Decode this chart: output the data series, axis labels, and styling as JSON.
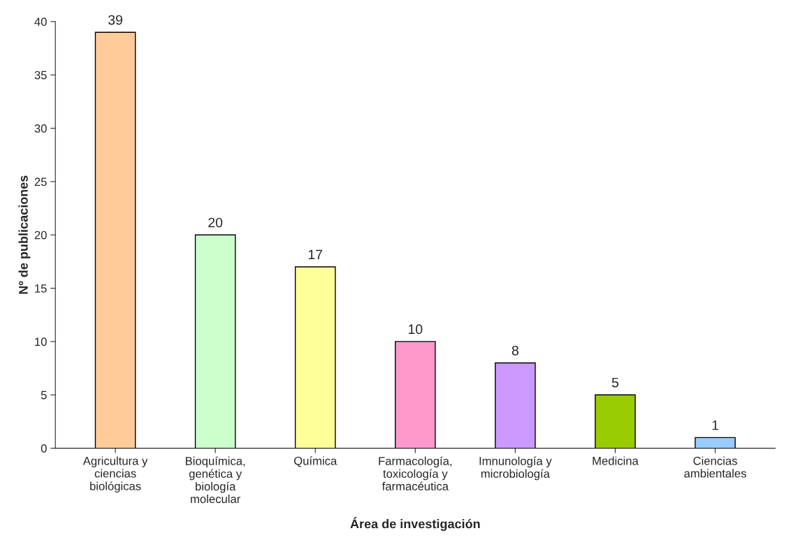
{
  "chart_data": {
    "type": "bar",
    "xlabel": "Área de investigación",
    "ylabel": "Nº de publicaciones",
    "categories": [
      "Agricultura y\nciencias\nbiológicas",
      "Bioquímica,\ngenética y\nbiología\nmolecular",
      "Química",
      "Farmacología,\ntoxicología y\nfarmacéutica",
      "Imnunología y\nmicrobiología",
      "Medicina",
      "Ciencias\nambientales"
    ],
    "values": [
      39,
      20,
      17,
      10,
      8,
      5,
      1
    ],
    "colors": [
      "#ffcc99",
      "#ccffcc",
      "#ffff99",
      "#ff99cc",
      "#cc99ff",
      "#99cc00",
      "#99ccff"
    ],
    "ylim": [
      0,
      40
    ],
    "yticks": [
      0,
      5,
      10,
      15,
      20,
      25,
      30,
      35,
      40
    ],
    "data_labels": true,
    "grid": false,
    "legend": false
  }
}
